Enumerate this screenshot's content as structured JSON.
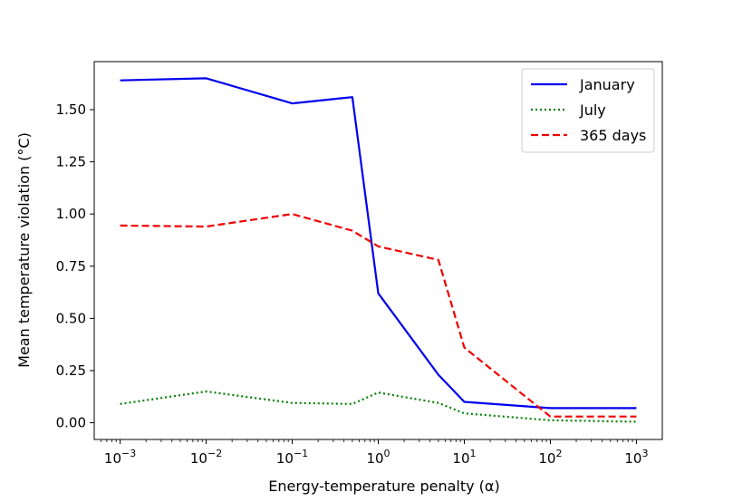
{
  "chart_data": {
    "type": "line",
    "title": "",
    "xlabel": "Energy-temperature penalty (α)",
    "ylabel": "Mean temperature violation (°C)",
    "xscale": "log",
    "xlim": [
      0.0005,
      2000
    ],
    "ylim": [
      -0.08,
      1.73
    ],
    "grid": false,
    "legend_position": "top-right",
    "x_ticks": [
      {
        "value": 0.001,
        "base": "10",
        "exp": "−3"
      },
      {
        "value": 0.01,
        "base": "10",
        "exp": "−2"
      },
      {
        "value": 0.1,
        "base": "10",
        "exp": "−1"
      },
      {
        "value": 1,
        "base": "10",
        "exp": "0"
      },
      {
        "value": 10,
        "base": "10",
        "exp": "1"
      },
      {
        "value": 100,
        "base": "10",
        "exp": "2"
      },
      {
        "value": 1000,
        "base": "10",
        "exp": "3"
      }
    ],
    "y_ticks": [
      {
        "value": 0.0,
        "label": "0.00"
      },
      {
        "value": 0.25,
        "label": "0.25"
      },
      {
        "value": 0.5,
        "label": "0.50"
      },
      {
        "value": 0.75,
        "label": "0.75"
      },
      {
        "value": 1.0,
        "label": "1.00"
      },
      {
        "value": 1.25,
        "label": "1.25"
      },
      {
        "value": 1.5,
        "label": "1.50"
      }
    ],
    "series": [
      {
        "name": "January",
        "color": "#0000ee",
        "style": "solid",
        "x": [
          0.001,
          0.01,
          0.1,
          0.5,
          1,
          5,
          10,
          100,
          1000
        ],
        "y": [
          1.64,
          1.65,
          1.53,
          1.56,
          0.62,
          0.23,
          0.1,
          0.07,
          0.07
        ]
      },
      {
        "name": "July",
        "color": "#008000",
        "style": "dotted",
        "x": [
          0.001,
          0.01,
          0.1,
          0.5,
          1,
          5,
          10,
          100,
          1000
        ],
        "y": [
          0.09,
          0.15,
          0.095,
          0.09,
          0.145,
          0.095,
          0.045,
          0.012,
          0.005
        ]
      },
      {
        "name": "365 days",
        "color": "#ee0000",
        "style": "dashed",
        "x": [
          0.001,
          0.01,
          0.1,
          0.5,
          1,
          5,
          10,
          100,
          1000
        ],
        "y": [
          0.945,
          0.94,
          1.0,
          0.92,
          0.845,
          0.78,
          0.36,
          0.03,
          0.03
        ]
      }
    ]
  }
}
